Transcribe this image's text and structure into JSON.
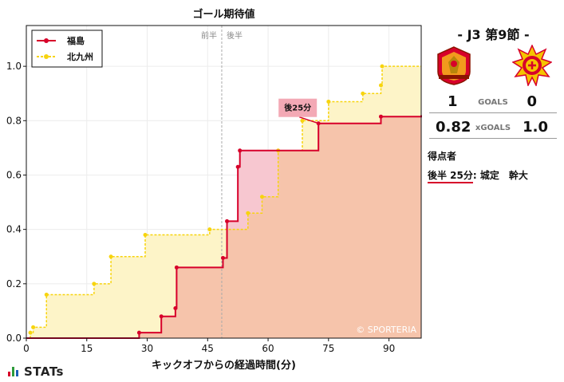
{
  "chart_data": {
    "type": "line",
    "title": "ゴール期待値",
    "xlabel": "キックオフからの経過時間(分)",
    "ylabel": "",
    "xlim": [
      0,
      98
    ],
    "ylim": [
      0,
      1.15
    ],
    "x_ticks": [
      0,
      15,
      30,
      45,
      60,
      75,
      90
    ],
    "x_tick_labels": [
      "0",
      "15",
      "30",
      "45",
      "60",
      "75",
      "90"
    ],
    "y_ticks": [
      0,
      0.2,
      0.4,
      0.6,
      0.8,
      1.0
    ],
    "y_tick_labels": [
      "0.0",
      "0.2",
      "0.4",
      "0.6",
      "0.8",
      "1.0"
    ],
    "halftime_x": 48.5,
    "halftime_labels": [
      "前半",
      "後半"
    ],
    "watermark": "© SPORTERIA",
    "series": [
      {
        "name": "福島",
        "color": "#d7002a",
        "fill": "#f6c4ab",
        "points": [
          [
            0,
            0
          ],
          [
            28,
            0.02
          ],
          [
            33.5,
            0.08
          ],
          [
            37,
            0.11
          ],
          [
            37.3,
            0.26
          ],
          [
            48.8,
            0.295
          ],
          [
            49.8,
            0.43
          ],
          [
            52.5,
            0.63
          ],
          [
            53,
            0.69
          ],
          [
            72.5,
            0.79
          ],
          [
            88,
            0.815
          ],
          [
            98,
            0.82
          ]
        ]
      },
      {
        "name": "北九州",
        "color": "#f7d40e",
        "fill": "#fdf4c8",
        "points": [
          [
            0,
            0
          ],
          [
            1,
            0.02
          ],
          [
            1.7,
            0.04
          ],
          [
            5,
            0.16
          ],
          [
            16.8,
            0.2
          ],
          [
            21,
            0.3
          ],
          [
            29.5,
            0.38
          ],
          [
            45.5,
            0.4
          ],
          [
            55,
            0.46
          ],
          [
            58.5,
            0.52
          ],
          [
            62.5,
            0.69
          ],
          [
            68.5,
            0.8
          ],
          [
            75,
            0.87
          ],
          [
            83.5,
            0.9
          ],
          [
            88,
            0.93
          ],
          [
            88.3,
            1.0
          ],
          [
            98,
            1.0
          ]
        ]
      }
    ],
    "annotations": [
      {
        "text": "後25分",
        "x": 72.5,
        "y": 0.79,
        "series": "福島"
      }
    ]
  },
  "match": {
    "title": "- J3 第9節 -",
    "home_team": "福島",
    "away_team": "北九州",
    "home_logo_icon": "fukushima-united-crest-icon",
    "away_logo_icon": "giravanz-kitakyushu-crest-icon",
    "goals_label": "GOALS",
    "home_goals": "1",
    "away_goals": "0",
    "xg_label": "xGOALS",
    "home_xg": "0.82",
    "away_xg": "1.0",
    "scorers_heading": "得点者",
    "scorers": [
      {
        "time": "後半 25分",
        "sep": ": ",
        "player": "城定　幹大"
      }
    ]
  },
  "brand": {
    "name": "STATs"
  }
}
